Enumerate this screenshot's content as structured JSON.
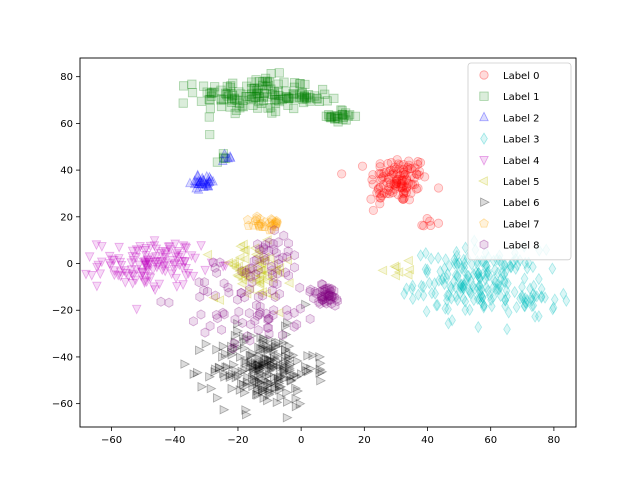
{
  "chart_data": {
    "type": "scatter",
    "title": "",
    "xlabel": "",
    "ylabel": "",
    "xlim": [
      -70,
      87
    ],
    "ylim": [
      -70,
      88
    ],
    "xticks": [
      -60,
      -40,
      -20,
      0,
      20,
      40,
      60,
      80
    ],
    "yticks": [
      -60,
      -40,
      -20,
      0,
      20,
      40,
      60,
      80
    ],
    "grid": false,
    "legend_position": "top-right",
    "series": [
      {
        "name": "Label 0",
        "color": "#ff0000",
        "marker": "circle",
        "clusters": [
          {
            "cx": 31,
            "cy": 36,
            "sx": 4.5,
            "sy": 5,
            "n": 110
          },
          {
            "cx": 40,
            "cy": 17,
            "sx": 1.5,
            "sy": 1.5,
            "n": 6
          },
          {
            "cx": 25,
            "cy": 28,
            "sx": 2,
            "sy": 3,
            "n": 8
          }
        ]
      },
      {
        "name": "Label 1",
        "color": "#008000",
        "marker": "square",
        "clusters": [
          {
            "cx": -15,
            "cy": 72,
            "sx": 9,
            "sy": 4,
            "n": 130
          },
          {
            "cx": 2,
            "cy": 71,
            "sx": 3.5,
            "sy": 1.5,
            "n": 20
          },
          {
            "cx": 13,
            "cy": 63,
            "sx": 2,
            "sy": 1.5,
            "n": 25
          },
          {
            "cx": -25,
            "cy": 45,
            "sx": 1.5,
            "sy": 1,
            "n": 5
          }
        ]
      },
      {
        "name": "Label 2",
        "color": "#0000ff",
        "marker": "triangle-up",
        "clusters": [
          {
            "cx": -31,
            "cy": 35,
            "sx": 2,
            "sy": 1.5,
            "n": 30
          },
          {
            "cx": -22,
            "cy": 45,
            "sx": 1.5,
            "sy": 1,
            "n": 5
          }
        ]
      },
      {
        "name": "Label 3",
        "color": "#00bfbf",
        "marker": "diamond",
        "clusters": [
          {
            "cx": 56,
            "cy": -8,
            "sx": 10,
            "sy": 7,
            "n": 200
          },
          {
            "cx": 74,
            "cy": -17,
            "sx": 3,
            "sy": 3,
            "n": 20
          }
        ]
      },
      {
        "name": "Label 4",
        "color": "#bf00bf",
        "marker": "triangle-down",
        "clusters": [
          {
            "cx": -48,
            "cy": 0,
            "sx": 8,
            "sy": 5,
            "n": 130
          }
        ]
      },
      {
        "name": "Label 5",
        "color": "#bfbf00",
        "marker": "triangle-left",
        "clusters": [
          {
            "cx": -15,
            "cy": -3,
            "sx": 6,
            "sy": 6,
            "n": 70
          },
          {
            "cx": 33,
            "cy": -2,
            "sx": 3,
            "sy": 2,
            "n": 8
          }
        ]
      },
      {
        "name": "Label 6",
        "color": "#000000",
        "marker": "triangle-right",
        "clusters": [
          {
            "cx": -12,
            "cy": -45,
            "sx": 8,
            "sy": 8,
            "n": 220
          }
        ]
      },
      {
        "name": "Label 7",
        "color": "#ffa500",
        "marker": "pentagon",
        "clusters": [
          {
            "cx": -11,
            "cy": 17,
            "sx": 2.5,
            "sy": 1.5,
            "n": 28
          }
        ]
      },
      {
        "name": "Label 8",
        "color": "#800080",
        "marker": "hexagon",
        "clusters": [
          {
            "cx": 8,
            "cy": -14,
            "sx": 2.5,
            "sy": 2.5,
            "n": 45
          },
          {
            "cx": -15,
            "cy": -15,
            "sx": 11,
            "sy": 10,
            "n": 90
          },
          {
            "cx": -7,
            "cy": 8,
            "sx": 3,
            "sy": 4,
            "n": 20
          }
        ]
      }
    ]
  }
}
